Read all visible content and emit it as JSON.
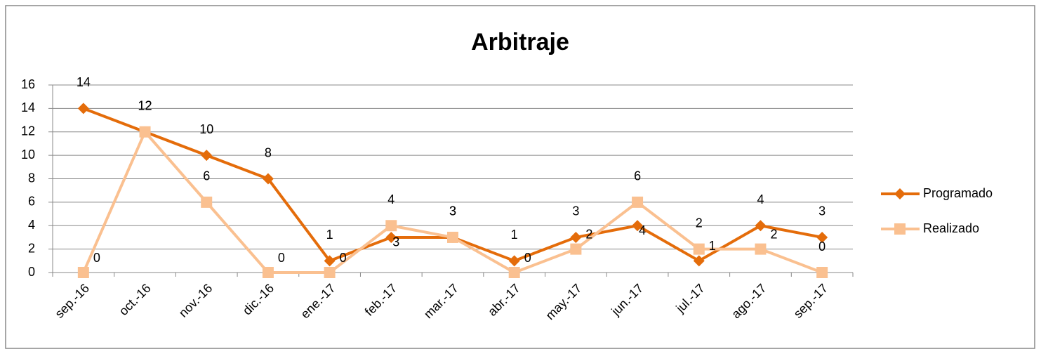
{
  "chart_data": {
    "type": "line",
    "title": "Arbitraje",
    "categories": [
      "sep.-16",
      "oct.-16",
      "nov.-16",
      "dic.-16",
      "ene.-17",
      "feb.-17",
      "mar.-17",
      "abr.-17",
      "may.-17",
      "jun.-17",
      "jul.-17",
      "ago.-17",
      "sep.-17"
    ],
    "series": [
      {
        "name": "Programado",
        "color": "#e46c0a",
        "marker": "diamond",
        "values": [
          14,
          12,
          10,
          8,
          1,
          3,
          3,
          1,
          3,
          4,
          1,
          4,
          3
        ]
      },
      {
        "name": "Realizado",
        "color": "#fac090",
        "marker": "square",
        "values": [
          0,
          12,
          6,
          0,
          0,
          4,
          3,
          0,
          2,
          6,
          2,
          2,
          0
        ]
      }
    ],
    "ylim": [
      0,
      16
    ],
    "yticks": [
      0,
      2,
      4,
      6,
      8,
      10,
      12,
      14,
      16
    ],
    "grid": true,
    "legend": "right"
  }
}
